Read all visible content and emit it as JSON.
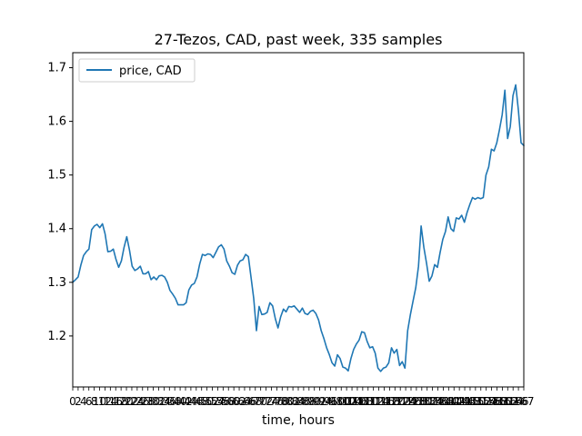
{
  "chart_data": {
    "type": "line",
    "title": "27-Tezos, CAD, past week, 335 samples",
    "xlabel": "time, hours",
    "ylabel": "",
    "xlim": [
      0,
      334
    ],
    "ylim": [
      1.105,
      1.728
    ],
    "yticks": [
      1.2,
      1.3,
      1.4,
      1.5,
      1.6,
      1.7
    ],
    "ytick_labels": [
      "1.2",
      "1.3",
      "1.4",
      "1.5",
      "1.6",
      "1.7"
    ],
    "xtick_label_note": "dense overlapping hour labels",
    "xtick_labels": [
      "0",
      "2",
      "4",
      "6",
      "8",
      "10",
      "12",
      "14",
      "16",
      "18",
      "20",
      "22",
      "24",
      "26",
      "28",
      "30",
      "32",
      "34",
      "36",
      "38",
      "40",
      "42",
      "44",
      "46",
      "48",
      "50",
      "52",
      "54",
      "56",
      "58",
      "60",
      "62",
      "64",
      "66",
      "68",
      "70",
      "72",
      "74",
      "76",
      "78",
      "80",
      "82",
      "84",
      "86",
      "88",
      "90",
      "92",
      "94",
      "96",
      "98",
      "100",
      "102",
      "104",
      "106",
      "108",
      "110",
      "112",
      "114",
      "116",
      "118",
      "120",
      "122",
      "124",
      "126",
      "128",
      "130",
      "132",
      "134",
      "136",
      "138",
      "140",
      "142",
      "144",
      "146",
      "148",
      "150",
      "152",
      "154",
      "156",
      "158",
      "160",
      "162",
      "164",
      "166",
      "167"
    ],
    "grid": false,
    "legend": "upper-left",
    "series": [
      {
        "name": "price, CAD",
        "color": "#1f77b4",
        "points": [
          [
            0,
            1.3
          ],
          [
            2,
            1.305
          ],
          [
            4,
            1.31
          ],
          [
            6,
            1.332
          ],
          [
            8,
            1.35
          ],
          [
            10,
            1.357
          ],
          [
            12,
            1.362
          ],
          [
            14,
            1.398
          ],
          [
            16,
            1.405
          ],
          [
            18,
            1.408
          ],
          [
            20,
            1.402
          ],
          [
            22,
            1.409
          ],
          [
            24,
            1.39
          ],
          [
            26,
            1.357
          ],
          [
            28,
            1.358
          ],
          [
            30,
            1.362
          ],
          [
            32,
            1.343
          ],
          [
            34,
            1.328
          ],
          [
            36,
            1.34
          ],
          [
            38,
            1.365
          ],
          [
            40,
            1.385
          ],
          [
            42,
            1.36
          ],
          [
            44,
            1.33
          ],
          [
            46,
            1.322
          ],
          [
            48,
            1.325
          ],
          [
            50,
            1.33
          ],
          [
            52,
            1.316
          ],
          [
            54,
            1.316
          ],
          [
            56,
            1.32
          ],
          [
            58,
            1.305
          ],
          [
            60,
            1.31
          ],
          [
            62,
            1.305
          ],
          [
            64,
            1.312
          ],
          [
            66,
            1.313
          ],
          [
            68,
            1.31
          ],
          [
            70,
            1.3
          ],
          [
            72,
            1.285
          ],
          [
            74,
            1.278
          ],
          [
            76,
            1.27
          ],
          [
            78,
            1.258
          ],
          [
            80,
            1.258
          ],
          [
            82,
            1.258
          ],
          [
            84,
            1.262
          ],
          [
            86,
            1.286
          ],
          [
            88,
            1.295
          ],
          [
            90,
            1.298
          ],
          [
            92,
            1.31
          ],
          [
            94,
            1.334
          ],
          [
            96,
            1.352
          ],
          [
            98,
            1.35
          ],
          [
            100,
            1.353
          ],
          [
            102,
            1.352
          ],
          [
            104,
            1.346
          ],
          [
            106,
            1.356
          ],
          [
            108,
            1.366
          ],
          [
            110,
            1.37
          ],
          [
            112,
            1.362
          ],
          [
            114,
            1.34
          ],
          [
            116,
            1.33
          ],
          [
            118,
            1.318
          ],
          [
            120,
            1.315
          ],
          [
            122,
            1.332
          ],
          [
            124,
            1.34
          ],
          [
            126,
            1.342
          ],
          [
            128,
            1.352
          ],
          [
            130,
            1.348
          ],
          [
            132,
            1.31
          ],
          [
            134,
            1.27
          ],
          [
            136,
            1.21
          ],
          [
            138,
            1.255
          ],
          [
            140,
            1.24
          ],
          [
            142,
            1.241
          ],
          [
            144,
            1.244
          ],
          [
            146,
            1.262
          ],
          [
            148,
            1.256
          ],
          [
            150,
            1.232
          ],
          [
            152,
            1.215
          ],
          [
            154,
            1.236
          ],
          [
            156,
            1.25
          ],
          [
            158,
            1.245
          ],
          [
            160,
            1.255
          ],
          [
            162,
            1.254
          ],
          [
            164,
            1.256
          ],
          [
            166,
            1.25
          ],
          [
            168,
            1.244
          ],
          [
            170,
            1.252
          ],
          [
            172,
            1.242
          ],
          [
            174,
            1.24
          ],
          [
            176,
            1.246
          ],
          [
            178,
            1.248
          ],
          [
            180,
            1.242
          ],
          [
            182,
            1.23
          ],
          [
            184,
            1.21
          ],
          [
            186,
            1.195
          ],
          [
            188,
            1.178
          ],
          [
            190,
            1.165
          ],
          [
            192,
            1.15
          ],
          [
            194,
            1.144
          ],
          [
            196,
            1.165
          ],
          [
            198,
            1.158
          ],
          [
            200,
            1.142
          ],
          [
            202,
            1.14
          ],
          [
            204,
            1.135
          ],
          [
            206,
            1.158
          ],
          [
            208,
            1.175
          ],
          [
            210,
            1.185
          ],
          [
            212,
            1.192
          ],
          [
            214,
            1.208
          ],
          [
            216,
            1.206
          ],
          [
            218,
            1.19
          ],
          [
            220,
            1.178
          ],
          [
            222,
            1.18
          ],
          [
            224,
            1.168
          ],
          [
            226,
            1.14
          ],
          [
            228,
            1.134
          ],
          [
            230,
            1.14
          ],
          [
            232,
            1.142
          ],
          [
            234,
            1.15
          ],
          [
            236,
            1.178
          ],
          [
            238,
            1.168
          ],
          [
            240,
            1.175
          ],
          [
            242,
            1.145
          ],
          [
            244,
            1.152
          ],
          [
            246,
            1.14
          ],
          [
            248,
            1.21
          ],
          [
            250,
            1.24
          ],
          [
            252,
            1.265
          ],
          [
            254,
            1.29
          ],
          [
            256,
            1.33
          ],
          [
            258,
            1.405
          ],
          [
            260,
            1.365
          ],
          [
            262,
            1.335
          ],
          [
            264,
            1.302
          ],
          [
            266,
            1.312
          ],
          [
            268,
            1.333
          ],
          [
            270,
            1.328
          ],
          [
            272,
            1.355
          ],
          [
            274,
            1.38
          ],
          [
            276,
            1.395
          ],
          [
            278,
            1.422
          ],
          [
            280,
            1.4
          ],
          [
            282,
            1.395
          ],
          [
            284,
            1.42
          ],
          [
            286,
            1.418
          ],
          [
            288,
            1.425
          ],
          [
            290,
            1.412
          ],
          [
            292,
            1.43
          ],
          [
            294,
            1.445
          ],
          [
            296,
            1.458
          ],
          [
            298,
            1.455
          ],
          [
            300,
            1.458
          ],
          [
            302,
            1.456
          ],
          [
            304,
            1.458
          ],
          [
            306,
            1.5
          ],
          [
            308,
            1.515
          ],
          [
            310,
            1.548
          ],
          [
            312,
            1.545
          ],
          [
            314,
            1.56
          ],
          [
            316,
            1.585
          ],
          [
            318,
            1.612
          ],
          [
            320,
            1.658
          ],
          [
            322,
            1.568
          ],
          [
            324,
            1.59
          ],
          [
            326,
            1.648
          ],
          [
            328,
            1.668
          ],
          [
            330,
            1.62
          ],
          [
            332,
            1.56
          ],
          [
            334,
            1.555
          ]
        ]
      }
    ]
  }
}
